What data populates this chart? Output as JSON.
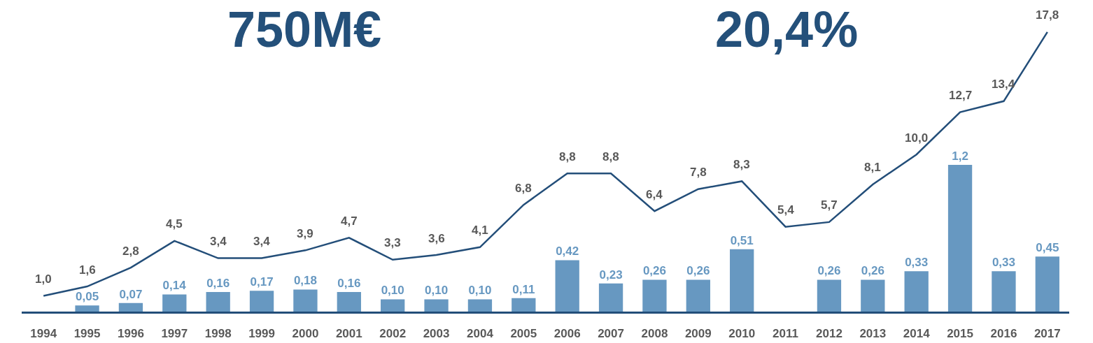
{
  "chart_data": {
    "type": "bar",
    "categories": [
      "1994",
      "1995",
      "1996",
      "1997",
      "1998",
      "1999",
      "2000",
      "2001",
      "2002",
      "2003",
      "2004",
      "2005",
      "2006",
      "2007",
      "2008",
      "2009",
      "2010",
      "2011",
      "2012",
      "2013",
      "2014",
      "2015",
      "2016",
      "2017"
    ],
    "series": [
      {
        "color": "#6798c1",
        "values": [
          null,
          0.05,
          0.07,
          0.14,
          0.16,
          0.17,
          0.18,
          0.16,
          0.1,
          0.1,
          0.1,
          0.11,
          0.42,
          0.23,
          0.26,
          0.26,
          0.51,
          null,
          0.26,
          0.26,
          0.33,
          1.2,
          0.33,
          0.45
        ],
        "value_labels": [
          null,
          "0,05",
          "0,07",
          "0,14",
          "0,16",
          "0,17",
          "0,18",
          "0,16",
          "0,10",
          "0,10",
          "0,10",
          "0,11",
          "0,42",
          "0,23",
          "0,26",
          "0,26",
          "0,51",
          null,
          "0,26",
          "0,26",
          "0,33",
          "1,2",
          "0,33",
          "0,45"
        ]
      },
      {
        "type": "line",
        "axis": "y2",
        "color": "#234e79",
        "values": [
          1.0,
          1.6,
          2.8,
          4.5,
          3.4,
          3.4,
          3.9,
          4.7,
          3.3,
          3.6,
          4.1,
          6.8,
          8.8,
          8.8,
          6.4,
          7.8,
          8.3,
          5.4,
          5.7,
          8.1,
          10.0,
          12.7,
          13.4,
          17.8
        ],
        "value_labels": [
          "1,0",
          "1,6",
          "2,8",
          "4,5",
          "3,4",
          "3,4",
          "3,9",
          "4,7",
          "3,3",
          "3,6",
          "4,1",
          "6,8",
          "8,8",
          "8,8",
          "6,4",
          "7,8",
          "8,3",
          "5,4",
          "5,7",
          "8,1",
          "10,0",
          "12,7",
          "13,4",
          "17,8"
        ]
      }
    ],
    "annotations": [
      "750M€",
      "20,4%"
    ],
    "tick_labels": "x"
  }
}
